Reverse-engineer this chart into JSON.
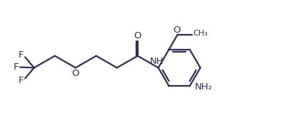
{
  "bg_color": "#ffffff",
  "line_color": "#2d2d4e",
  "line_width": 1.6,
  "font_size": 9.5,
  "figsize": [
    4.1,
    1.86
  ],
  "dpi": 100,
  "xlim": [
    0,
    10
  ],
  "ylim": [
    0,
    4.52
  ]
}
